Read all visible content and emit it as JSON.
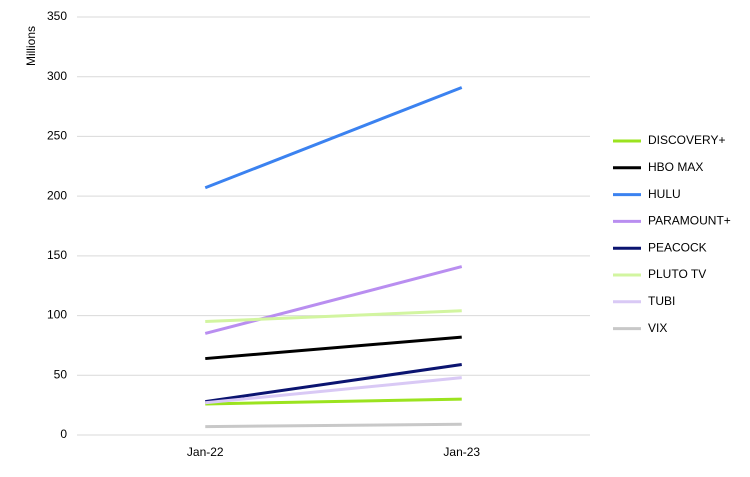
{
  "chart_data": {
    "type": "line",
    "y_label": "Millions",
    "categories": [
      "Jan-22",
      "Jan-23"
    ],
    "series": [
      {
        "name": "DISCOVERY+",
        "color": "#9be31f",
        "values": [
          26,
          30
        ]
      },
      {
        "name": "HBO MAX",
        "color": "#000000",
        "values": [
          64,
          82
        ]
      },
      {
        "name": "HULU",
        "color": "#3b82f0",
        "values": [
          207,
          291
        ]
      },
      {
        "name": "PARAMOUNT+",
        "color": "#b98ef0",
        "values": [
          85,
          141
        ]
      },
      {
        "name": "PEACOCK",
        "color": "#0b1470",
        "values": [
          28,
          59
        ]
      },
      {
        "name": "PLUTO TV",
        "color": "#d2f5a0",
        "values": [
          95,
          104
        ]
      },
      {
        "name": "TUBI",
        "color": "#d9c9f5",
        "values": [
          27,
          48
        ]
      },
      {
        "name": "VIX",
        "color": "#c8c8c8",
        "values": [
          7,
          9
        ]
      }
    ],
    "ylim": [
      0,
      350
    ],
    "yticks": [
      0,
      50,
      100,
      150,
      200,
      250,
      300,
      350
    ],
    "grid": true,
    "legend": "right"
  }
}
